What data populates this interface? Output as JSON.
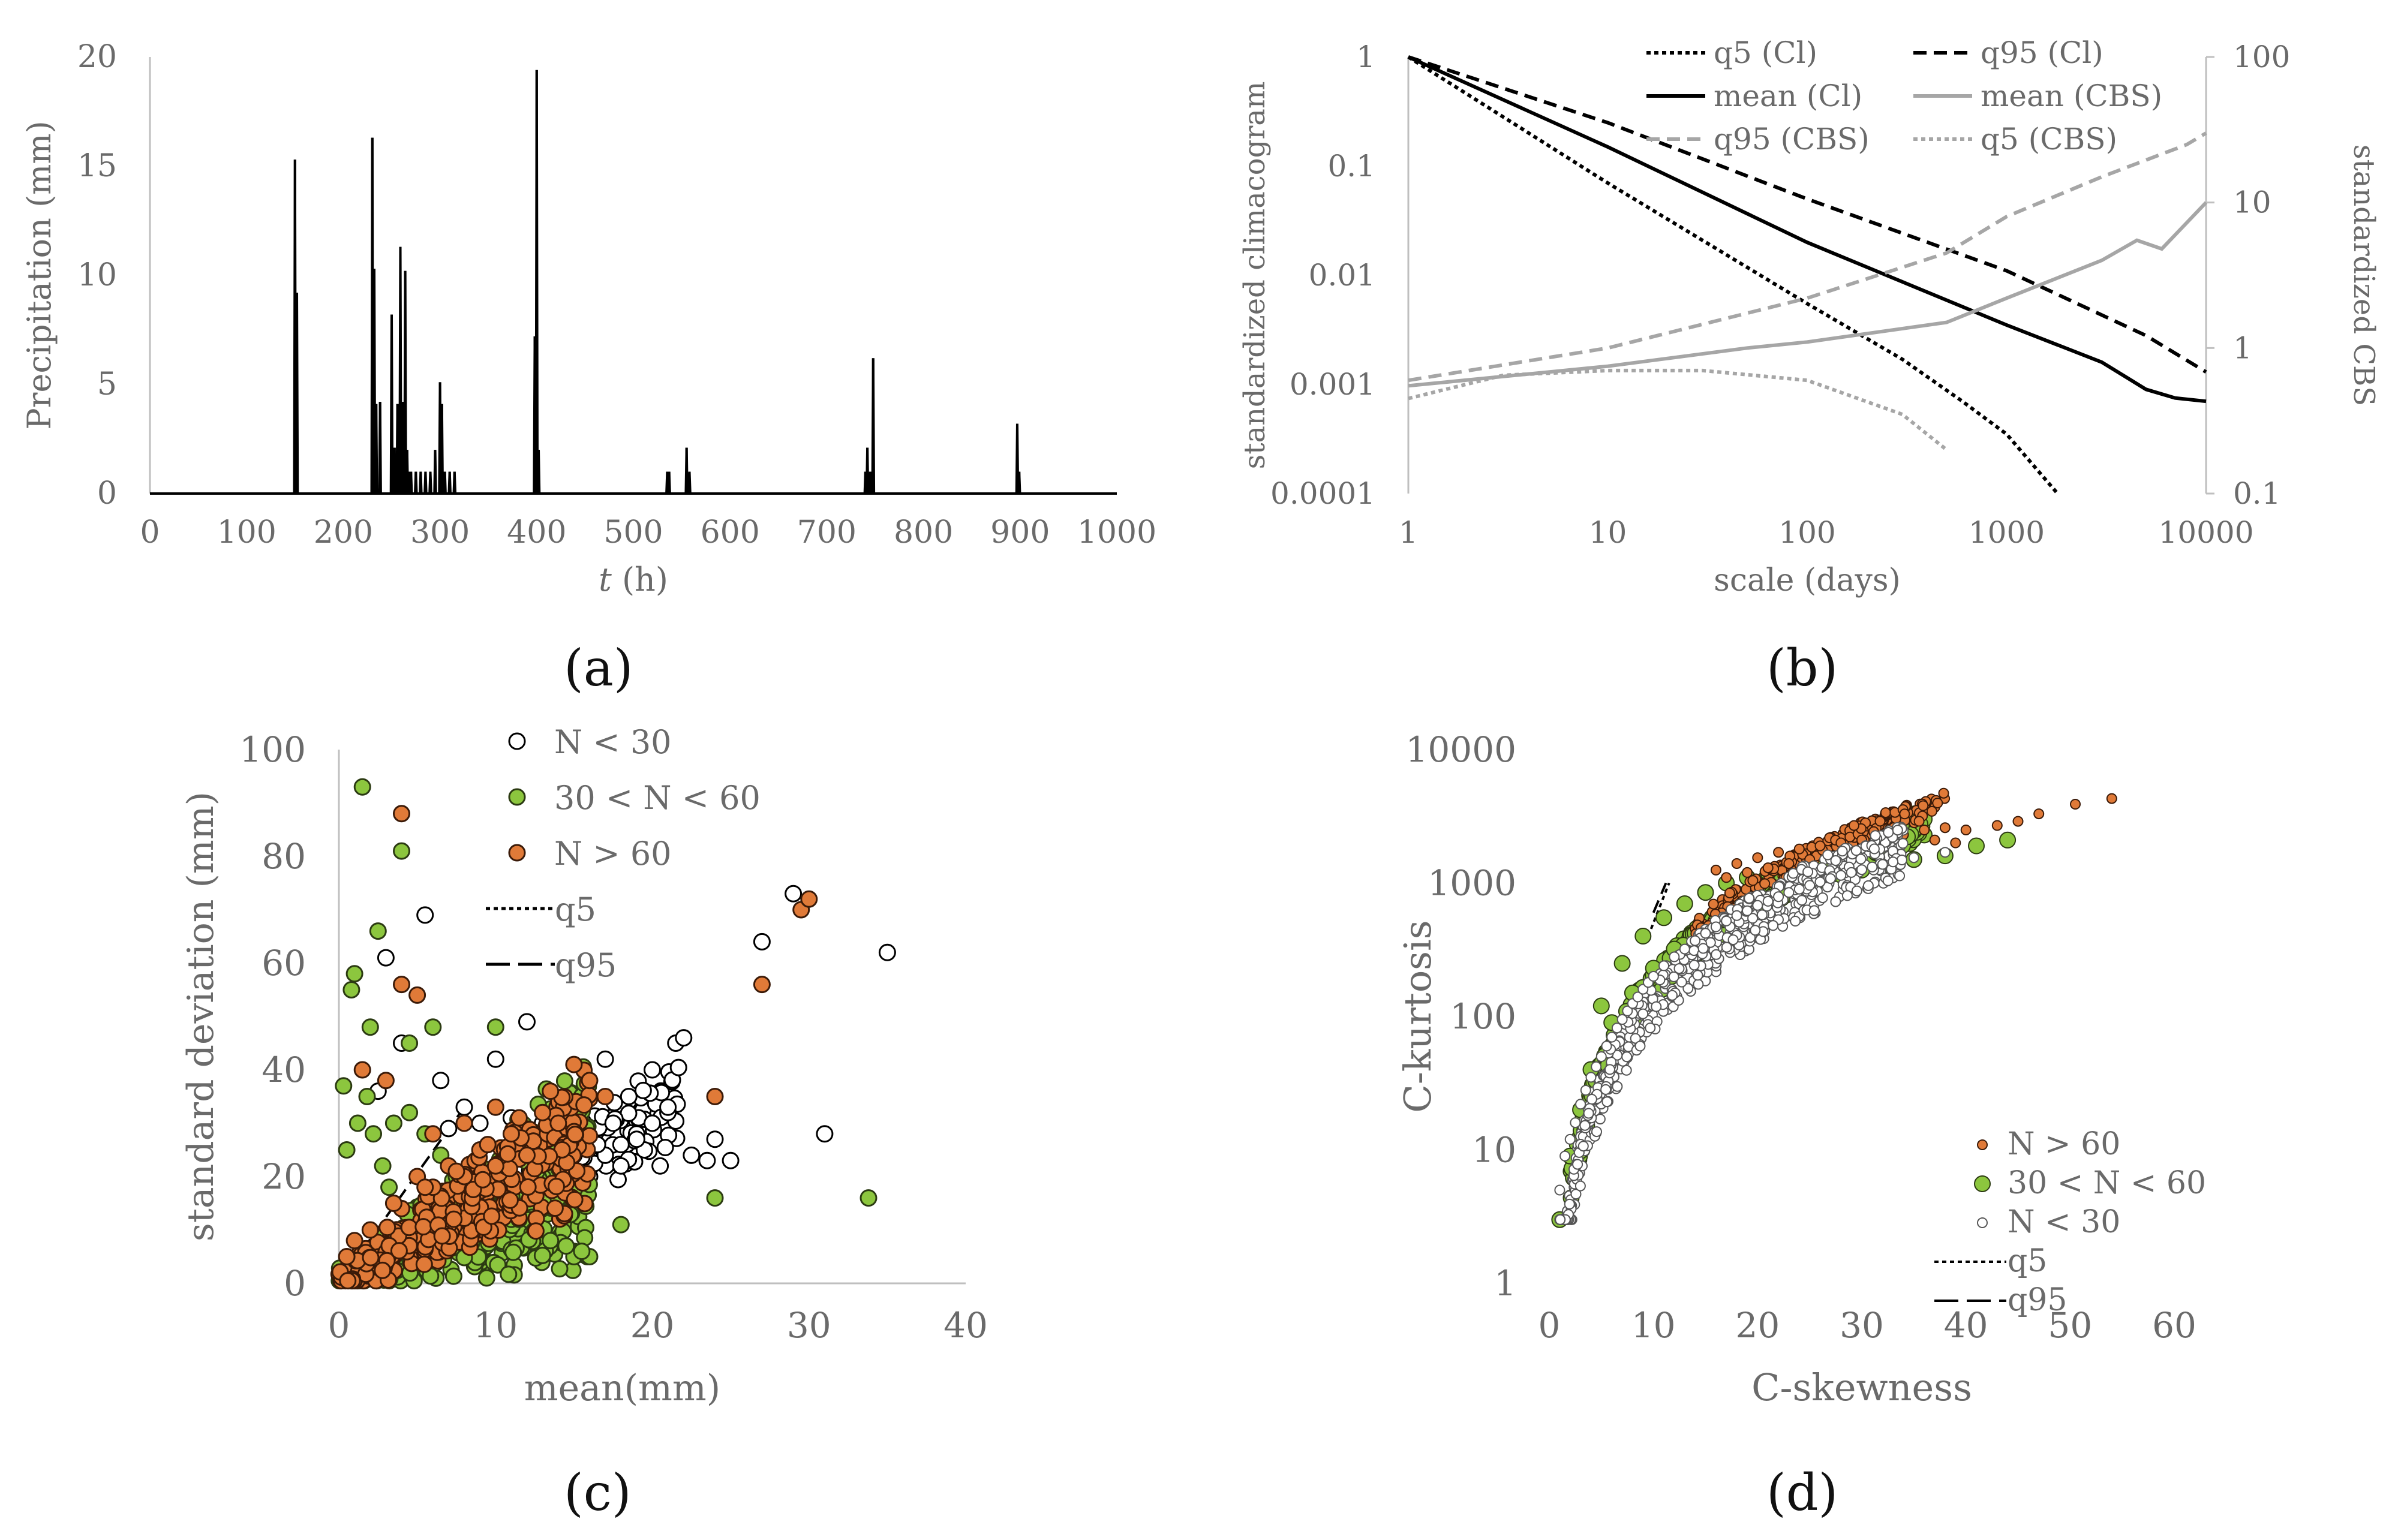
{
  "panel_labels": [
    "(a)",
    "(b)",
    "(c)",
    "(d)"
  ],
  "chart_data": [
    {
      "id": "a",
      "type": "bar",
      "title": "",
      "xlabel_italic": "t",
      "xlabel_rest": " (h)",
      "ylabel": "Precipitation (mm)",
      "xlim": [
        0,
        1000
      ],
      "ylim": [
        0,
        20
      ],
      "xticks": [
        0,
        100,
        200,
        300,
        400,
        500,
        600,
        700,
        800,
        900,
        1000
      ],
      "yticks": [
        0,
        5,
        10,
        15,
        20
      ],
      "x": [
        150,
        152,
        230,
        232,
        234,
        238,
        250,
        253,
        256,
        259,
        262,
        264,
        266,
        268,
        270,
        275,
        280,
        285,
        290,
        295,
        300,
        302,
        305,
        310,
        315,
        398,
        400,
        402,
        535,
        537,
        555,
        558,
        740,
        742,
        745,
        748,
        897,
        899
      ],
      "y": [
        15.3,
        9.2,
        16.3,
        10.3,
        4.1,
        4.2,
        8.2,
        2.1,
        4.1,
        11.3,
        4.2,
        10.2,
        2.0,
        1.0,
        1.0,
        1.0,
        1.0,
        1.0,
        1.0,
        2.0,
        5.1,
        4.1,
        1.0,
        1.0,
        1.0,
        7.2,
        19.4,
        2.0,
        1.0,
        1.0,
        2.1,
        1.0,
        1.0,
        2.1,
        1.0,
        6.2,
        3.2,
        1.0
      ]
    },
    {
      "id": "b",
      "type": "line",
      "xlabel": "scale (days)",
      "ylabel_left": "standardized climacogram",
      "ylabel_right": "standardized CBS",
      "xlim": [
        1,
        10000
      ],
      "ylim_left": [
        0.0001,
        1
      ],
      "ylim_right": [
        0.1,
        100
      ],
      "xticks": [
        "1",
        "10",
        "100",
        "1000",
        "10000"
      ],
      "yticks_left": [
        "0.0001",
        "0.001",
        "0.01",
        "0.1",
        "1"
      ],
      "yticks_right": [
        "0.1",
        "1",
        "10",
        "100"
      ],
      "legend": [
        "q5 (Cl)",
        "q95 (Cl)",
        "mean (Cl)",
        "mean (CBS)",
        "q95 (CBS)",
        "q5 (CBS)"
      ],
      "series": [
        {
          "name": "q5 (Cl)",
          "axis": "left",
          "color": "#000000",
          "dash": "dotted",
          "x": [
            1,
            10,
            100,
            300,
            600,
            1000,
            1800
          ],
          "y": [
            1,
            0.07,
            0.0055,
            0.0017,
            0.0007,
            0.00035,
            0.0001
          ]
        },
        {
          "name": "q95 (Cl)",
          "axis": "left",
          "color": "#000000",
          "dash": "dashed",
          "x": [
            1,
            10,
            100,
            1000,
            5000,
            10000
          ],
          "y": [
            1,
            0.25,
            0.05,
            0.011,
            0.0028,
            0.0013
          ]
        },
        {
          "name": "mean (Cl)",
          "axis": "left",
          "color": "#000000",
          "dash": "solid",
          "x": [
            1,
            10,
            100,
            1000,
            3000,
            5000,
            7000,
            10000
          ],
          "y": [
            1,
            0.15,
            0.02,
            0.0035,
            0.0016,
            0.0009,
            0.00075,
            0.0007
          ]
        },
        {
          "name": "mean (CBS)",
          "axis": "right",
          "color": "#a6a6a6",
          "dash": "solid",
          "x": [
            1,
            10,
            50,
            100,
            500,
            1000,
            3000,
            4500,
            6000,
            10000
          ],
          "y": [
            0.55,
            0.75,
            1.0,
            1.1,
            1.5,
            2.2,
            4.0,
            5.5,
            4.8,
            10
          ]
        },
        {
          "name": "q95 (CBS)",
          "axis": "right",
          "color": "#a6a6a6",
          "dash": "dashed",
          "x": [
            1,
            10,
            100,
            500,
            1000,
            3000,
            8000,
            10000
          ],
          "y": [
            0.6,
            1.0,
            2.2,
            4.5,
            8,
            15,
            25,
            30
          ]
        },
        {
          "name": "q5 (CBS)",
          "axis": "right",
          "color": "#a6a6a6",
          "dash": "dotted",
          "x": [
            1,
            3,
            10,
            30,
            100,
            300,
            500
          ],
          "y": [
            0.45,
            0.65,
            0.7,
            0.7,
            0.6,
            0.35,
            0.2
          ]
        }
      ]
    },
    {
      "id": "c",
      "type": "scatter",
      "xlabel": "mean(mm)",
      "ylabel": "standard deviation (mm)",
      "xlim": [
        0,
        40
      ],
      "ylim": [
        0,
        100
      ],
      "xticks": [
        0,
        10,
        20,
        30,
        40
      ],
      "yticks": [
        0,
        20,
        40,
        60,
        80,
        100
      ],
      "legend": [
        "N < 30",
        "30 < N < 60",
        "N > 60",
        "q5",
        "q95"
      ],
      "series": [
        {
          "name": "N < 30",
          "fill": "#ffffff",
          "stroke": "#000000",
          "x": [
            16,
            17,
            18,
            19,
            20,
            21,
            20.5,
            19.5,
            18.5,
            21.5,
            14,
            15,
            16.5,
            17.5,
            22,
            24,
            25,
            29,
            35,
            31,
            27,
            3,
            5.5,
            12,
            10,
            6.5,
            8,
            4,
            2.5,
            18,
            19,
            20,
            21,
            17,
            16,
            22.5,
            23.5,
            13,
            11,
            9,
            7,
            15.5,
            14.5,
            13.5,
            12.5
          ],
          "y": [
            20,
            24,
            26,
            28,
            30,
            32,
            22,
            25,
            35,
            45,
            22,
            24,
            26,
            30,
            46,
            27,
            23,
            73,
            62,
            28,
            64,
            61,
            69,
            49,
            42,
            38,
            33,
            45,
            36,
            22,
            27,
            40,
            33,
            42,
            35,
            24,
            23,
            30,
            31,
            30,
            29,
            20,
            19,
            21,
            19
          ]
        },
        {
          "name": "30 < N < 60",
          "fill": "#8cc63e",
          "stroke": "#2b3a12",
          "x": [
            1.5,
            4,
            2.5,
            1,
            0.8,
            2,
            10,
            6,
            4.5,
            0.3,
            12,
            15,
            16,
            18,
            24,
            33.8,
            8,
            6,
            5,
            3,
            2,
            1,
            7,
            9,
            11,
            13,
            14,
            3.5,
            4.5,
            5.5,
            6.5,
            7.5,
            8.5,
            9.5,
            10.5,
            11.5,
            12.5,
            13.5,
            14.5,
            15.5,
            0.5,
            1.2,
            1.8,
            2.2,
            2.8,
            3.2
          ],
          "y": [
            93,
            81,
            66,
            58,
            55,
            48,
            48,
            48,
            45,
            37,
            18,
            5,
            5,
            11,
            16,
            16,
            9,
            10,
            8,
            6,
            5,
            4,
            9,
            11,
            12,
            14,
            16,
            30,
            32,
            28,
            24,
            20,
            17,
            15,
            13,
            12,
            10,
            8,
            7,
            6,
            25,
            30,
            35,
            28,
            22,
            18
          ]
        },
        {
          "name": "N > 60",
          "fill": "#e07a38",
          "stroke": "#3a1a08",
          "x": [
            4,
            4,
            5,
            27,
            29.5,
            30,
            24,
            1.5,
            3,
            5,
            7,
            9,
            11,
            13,
            15,
            2,
            4,
            6,
            8,
            10,
            12,
            14,
            16,
            17,
            0.5,
            1,
            3.5,
            5.5,
            7.5,
            9.5,
            11.5,
            13.5,
            6,
            8,
            10
          ],
          "y": [
            88,
            56,
            54,
            56,
            70,
            72,
            35,
            40,
            38,
            20,
            22,
            25,
            28,
            32,
            41,
            10,
            14,
            18,
            20,
            22,
            24,
            30,
            38,
            35,
            5,
            8,
            15,
            18,
            21,
            26,
            31,
            36,
            28,
            30,
            33
          ]
        }
      ]
    },
    {
      "id": "d",
      "type": "scatter",
      "xlabel": "C-skewness",
      "ylabel": "C-kurtosis",
      "xlim": [
        0,
        60
      ],
      "ylim": [
        1,
        10000
      ],
      "xticks": [
        0,
        10,
        20,
        30,
        40,
        50,
        60
      ],
      "yticks": [
        "1",
        "10",
        "100",
        "1000",
        "10000"
      ],
      "legend": [
        "N > 60",
        "30 < N < 60",
        "N < 30",
        "q5",
        "q95"
      ],
      "series": [
        {
          "name": "N > 60",
          "fill": "#e07a38",
          "stroke": "#3a1a08",
          "x": [
            54,
            50.5,
            47,
            45,
            43,
            40,
            38,
            36,
            34,
            32,
            30,
            28,
            26,
            24,
            22,
            20,
            18,
            16,
            37,
            39,
            33,
            31,
            29,
            27,
            25,
            23,
            21,
            19,
            17
          ],
          "y": [
            4300,
            3900,
            3300,
            2900,
            2700,
            2500,
            2600,
            2500,
            2300,
            2200,
            2100,
            2000,
            1900,
            1800,
            1700,
            1550,
            1400,
            1250,
            2100,
            2000,
            1900,
            1800,
            1700,
            1600,
            1500,
            1400,
            1300,
            1200,
            1100
          ]
        },
        {
          "name": "30 < N < 60",
          "fill": "#8cc63e",
          "stroke": "#2b3a12",
          "x": [
            1,
            41,
            44,
            38,
            35,
            32,
            30,
            28,
            26,
            24,
            22,
            20,
            18,
            16,
            14,
            12,
            10,
            8,
            6,
            4,
            3,
            2,
            13,
            15,
            17,
            19,
            21,
            23,
            25,
            11,
            9,
            7,
            5
          ],
          "y": [
            3,
            1900,
            2100,
            1600,
            1500,
            1350,
            1250,
            1150,
            1050,
            950,
            850,
            750,
            650,
            520,
            420,
            320,
            230,
            150,
            90,
            40,
            20,
            9,
            700,
            850,
            1000,
            1100,
            1200,
            1300,
            1400,
            550,
            400,
            250,
            120
          ]
        },
        {
          "name": "N < 30",
          "fill": "#ffffff",
          "stroke": "#555555",
          "x": [
            1,
            1.5,
            2,
            2.5,
            3,
            3.5,
            4,
            4.5,
            5,
            5.5,
            6,
            6.5,
            7,
            7.5,
            8,
            8.5,
            9,
            9.5,
            10,
            11,
            12,
            13,
            14,
            15,
            16,
            17,
            18,
            19,
            20,
            21,
            22,
            23,
            24,
            25,
            26,
            27,
            28,
            29,
            30,
            31,
            32,
            33,
            35,
            38
          ],
          "y": [
            5,
            9,
            12,
            16,
            22,
            28,
            35,
            42,
            50,
            60,
            70,
            82,
            95,
            110,
            125,
            140,
            160,
            180,
            200,
            240,
            280,
            320,
            370,
            420,
            470,
            520,
            570,
            620,
            680,
            730,
            790,
            850,
            900,
            960,
            1020,
            1080,
            1140,
            1200,
            1260,
            1320,
            1380,
            1440,
            1550,
            1700
          ]
        }
      ]
    }
  ]
}
